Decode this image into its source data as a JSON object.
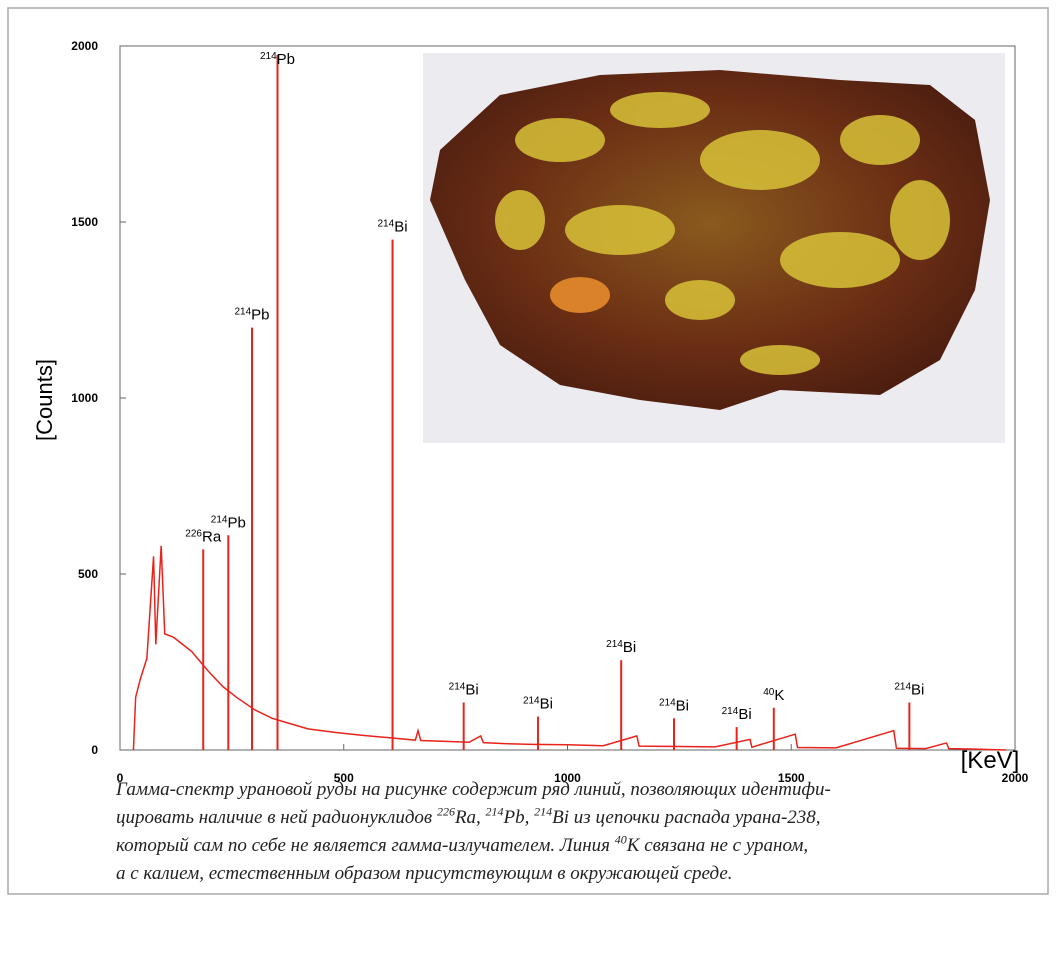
{
  "chart_data": {
    "type": "spectrum",
    "xlabel": "[KeV]",
    "ylabel": "[Counts]",
    "xlim": [
      0,
      2000
    ],
    "ylim": [
      0,
      2000
    ],
    "xticks": [
      0,
      500,
      1000,
      1500,
      2000
    ],
    "yticks": [
      0,
      500,
      1000,
      1500,
      2000
    ],
    "color": "#e8231b",
    "x": [
      30,
      35,
      45,
      60,
      75,
      80,
      92,
      100,
      120,
      140,
      160,
      180,
      200,
      230,
      260,
      300,
      340,
      380,
      420,
      480,
      540,
      600,
      660,
      666,
      672,
      720,
      780,
      806,
      812,
      860,
      920,
      1000,
      1080,
      1155,
      1160,
      1250,
      1330,
      1408,
      1412,
      1509,
      1514,
      1600,
      1729,
      1735,
      1800,
      1847,
      1852,
      1900,
      1980
    ],
    "values": [
      0,
      150,
      200,
      260,
      550,
      300,
      580,
      330,
      320,
      300,
      280,
      250,
      220,
      180,
      150,
      115,
      90,
      75,
      60,
      50,
      42,
      35,
      28,
      55,
      27,
      25,
      22,
      40,
      21,
      18,
      16,
      15,
      12,
      40,
      11,
      10,
      9,
      30,
      8,
      45,
      7,
      6,
      55,
      5,
      4,
      20,
      4,
      3,
      0
    ],
    "peaks": [
      {
        "energy": 186,
        "counts": 570,
        "isotope": "226",
        "element": "Ra"
      },
      {
        "energy": 242,
        "counts": 610,
        "isotope": "214",
        "element": "Pb"
      },
      {
        "energy": 295,
        "counts": 1200,
        "isotope": "214",
        "element": "Pb"
      },
      {
        "energy": 352,
        "counts": 1975,
        "isotope": "214",
        "element": "Pb"
      },
      {
        "energy": 609,
        "counts": 1450,
        "isotope": "214",
        "element": "Bi"
      },
      {
        "energy": 768,
        "counts": 135,
        "isotope": "214",
        "element": "Bi"
      },
      {
        "energy": 934,
        "counts": 95,
        "isotope": "214",
        "element": "Bi"
      },
      {
        "energy": 1120,
        "counts": 255,
        "isotope": "214",
        "element": "Bi"
      },
      {
        "energy": 1238,
        "counts": 90,
        "isotope": "214",
        "element": "Bi"
      },
      {
        "energy": 1378,
        "counts": 65,
        "isotope": "214",
        "element": "Bi"
      },
      {
        "energy": 1461,
        "counts": 120,
        "isotope": "40",
        "element": "K"
      },
      {
        "energy": 1764,
        "counts": 135,
        "isotope": "214",
        "element": "Bi"
      }
    ]
  },
  "caption": [
    [
      {
        "text": "Гамма-спектр урановой руды на рисунке содержит ряд линий, позволяющих идентифи-"
      }
    ],
    [
      {
        "text": "цировать наличие в ней радионуклидов "
      },
      {
        "sup": "226"
      },
      {
        "text": "Ra, "
      },
      {
        "sup": "214"
      },
      {
        "text": "Pb, "
      },
      {
        "sup": "214"
      },
      {
        "text": "Bi из цепочки распада урана-238,"
      }
    ],
    [
      {
        "text": "который сам по себе не является гамма-излучателем. Линия "
      },
      {
        "sup": "40"
      },
      {
        "text": "K связана не с ураном,"
      }
    ],
    [
      {
        "text": "а с калием, естественным образом присутствующим в окружающей среде."
      }
    ]
  ]
}
